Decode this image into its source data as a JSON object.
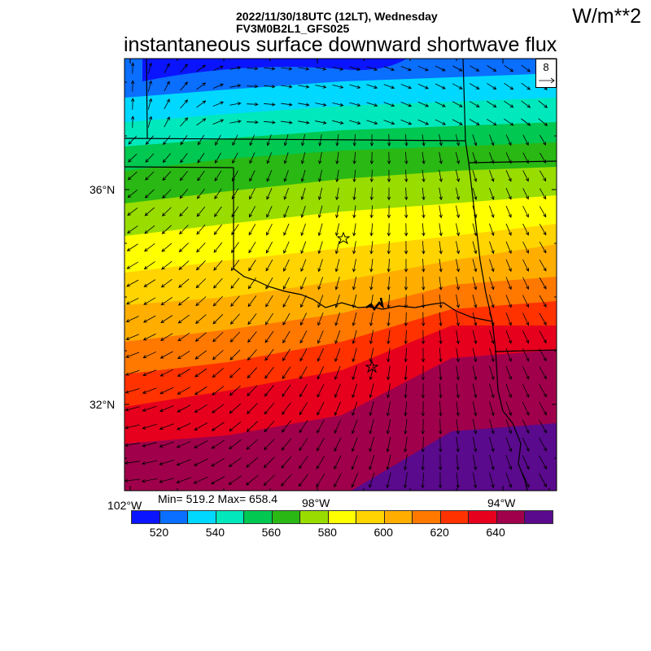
{
  "header": {
    "datetime": "2022/11/30/18UTC (12LT), Wednesday",
    "model": "FV3M0B2L1_GFS025",
    "title": "instantaneous surface downward shortwave flux",
    "units": "W/m**2"
  },
  "axes": {
    "lat_labels": [
      "36°N",
      "32°N"
    ],
    "lon_labels": [
      "102°W",
      "98°W",
      "94°W"
    ]
  },
  "stats": {
    "text": "Min= 519.2 Max= 658.4",
    "min": 519.2,
    "max": 658.4
  },
  "reference_vector": {
    "value": "8"
  },
  "colorbar": {
    "labels": [
      "520",
      "540",
      "560",
      "580",
      "600",
      "620",
      "640"
    ],
    "levels": [
      520,
      530,
      540,
      550,
      560,
      570,
      580,
      590,
      600,
      610,
      620,
      630,
      640,
      650
    ],
    "colors": [
      "#0a14ff",
      "#0a6eff",
      "#00d8ff",
      "#00e8bc",
      "#00c850",
      "#2ab814",
      "#98dc00",
      "#ffff00",
      "#ffd400",
      "#ffae00",
      "#ff7800",
      "#ff3200",
      "#e6001e",
      "#a0004b",
      "#5a0a8c"
    ]
  },
  "markers": [
    "star",
    "star"
  ]
}
